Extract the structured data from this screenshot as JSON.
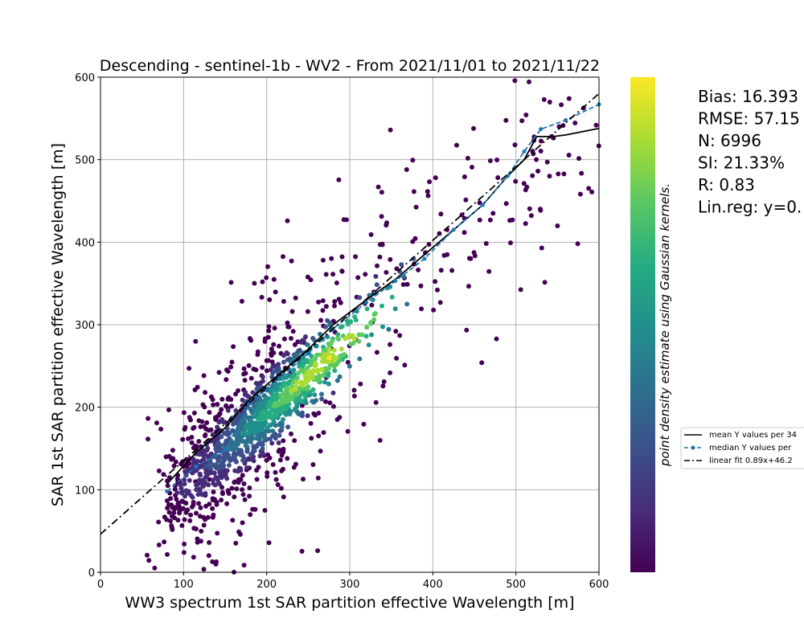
{
  "chart_data": {
    "type": "scatter",
    "title": "Descending - sentinel-1b - WV2 - From 2021/11/01 to 2021/11/22",
    "xlabel": "WW3 spectrum 1st SAR partition effective Wavelength [m]",
    "ylabel": "SAR 1st SAR partition effective Wavelength [m]",
    "xlim": [
      0,
      600
    ],
    "ylim": [
      0,
      600
    ],
    "x_ticks": [
      "0",
      "100",
      "200",
      "300",
      "400",
      "500",
      "600"
    ],
    "y_ticks": [
      "0",
      "100",
      "200",
      "300",
      "400",
      "500",
      "600"
    ],
    "grid": true,
    "colorbar_label": "point density estimate using Gaussian kernels.",
    "colormap": [
      "#440154",
      "#472c7a",
      "#3b518b",
      "#2c718e",
      "#21908d",
      "#27ad81",
      "#5cc863",
      "#aadc32",
      "#fde725"
    ],
    "scatter_summary": {
      "count": 6996,
      "description_of_cloud": "dense band along y = 0.89x + 46.2, densest near (270, 290)",
      "core_x_range": [
        70,
        400
      ],
      "sparse_x_range": [
        55,
        600
      ]
    },
    "stats": [
      "Bias: 16.393",
      "RMSE: 57.15",
      "N: 6996",
      "SI: 21.33%",
      "R: 0.83",
      "Lin.reg: y=0."
    ],
    "legend_position": "right",
    "legend": [
      "mean Y values per 34",
      "median Y values per",
      "linear fit 0.89x+46.2"
    ],
    "series": [
      {
        "name": "mean Y values per 34",
        "style": "solid",
        "color": "#000000",
        "x": [
          80,
          115,
          150,
          180,
          215,
          250,
          280,
          320,
          355,
          390,
          425,
          460,
          490,
          510,
          525,
          545,
          560,
          600
        ],
        "y": [
          107,
          145,
          175,
          210,
          240,
          270,
          300,
          330,
          355,
          385,
          415,
          445,
          480,
          500,
          528,
          528,
          530,
          538
        ]
      },
      {
        "name": "median Y values per",
        "style": "dashed-marker",
        "color": "#1f77b4",
        "x": [
          80,
          115,
          150,
          180,
          215,
          250,
          280,
          320,
          355,
          390,
          425,
          460,
          490,
          510,
          530,
          560,
          600
        ],
        "y": [
          98,
          128,
          148,
          205,
          235,
          265,
          295,
          327,
          353,
          380,
          415,
          445,
          480,
          510,
          537,
          548,
          567
        ]
      },
      {
        "name": "linear fit 0.89x+46.2",
        "style": "dashdot",
        "color": "#000000",
        "slope": 0.89,
        "intercept": 46.2
      }
    ]
  }
}
